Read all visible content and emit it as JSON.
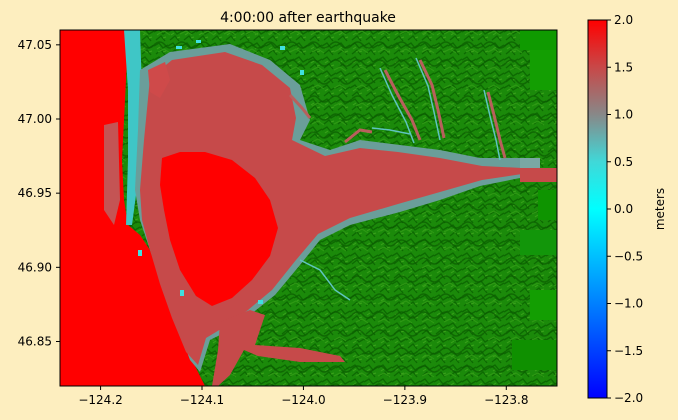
{
  "title": "4:00:00 after earthquake",
  "colors": {
    "figure_background": "#fdeebf",
    "land_dark": "#0a6a00",
    "land_mid": "#1b8a0a",
    "land_light": "#3aa21a",
    "wave_high": "#ff0000",
    "wave_mid": "#c84848",
    "wave_gray": "#8a8a8a",
    "wave_cyan": "#00e5e5"
  },
  "chart_data": {
    "type": "heatmap",
    "title": "4:00:00 after earthquake",
    "xlabel": "",
    "ylabel": "",
    "xlim": [
      -124.24,
      -123.75
    ],
    "ylim": [
      46.82,
      47.06
    ],
    "x_ticks": [
      {
        "value": -124.2,
        "label": "−124.2"
      },
      {
        "value": -124.1,
        "label": "−124.1"
      },
      {
        "value": -124.0,
        "label": "−124.0"
      },
      {
        "value": -123.9,
        "label": "−123.9"
      },
      {
        "value": -123.8,
        "label": "−123.8"
      }
    ],
    "y_ticks": [
      {
        "value": 46.85,
        "label": "46.85"
      },
      {
        "value": 46.9,
        "label": "46.90"
      },
      {
        "value": 46.95,
        "label": "46.95"
      },
      {
        "value": 47.0,
        "label": "47.00"
      },
      {
        "value": 47.05,
        "label": "47.05"
      }
    ],
    "colorbar": {
      "label": "meters",
      "range": [
        -2.0,
        2.0
      ],
      "ticks": [
        {
          "value": 2.0,
          "label": "2.0"
        },
        {
          "value": 1.5,
          "label": "1.5"
        },
        {
          "value": 1.0,
          "label": "1.0"
        },
        {
          "value": 0.5,
          "label": "0.5"
        },
        {
          "value": 0.0,
          "label": "0.0"
        },
        {
          "value": -0.5,
          "label": "−0.5"
        },
        {
          "value": -1.0,
          "label": "−1.0"
        },
        {
          "value": -1.5,
          "label": "−1.5"
        },
        {
          "value": -2.0,
          "label": "−2.0"
        }
      ],
      "stops": [
        {
          "value": -2.0,
          "color": "#0000ff"
        },
        {
          "value": -1.0,
          "color": "#0080ff"
        },
        {
          "value": 0.0,
          "color": "#00ffff"
        },
        {
          "value": 0.5,
          "color": "#40d8d8"
        },
        {
          "value": 1.0,
          "color": "#888888"
        },
        {
          "value": 1.5,
          "color": "#c84848"
        },
        {
          "value": 2.0,
          "color": "#ff0000"
        }
      ]
    }
  }
}
